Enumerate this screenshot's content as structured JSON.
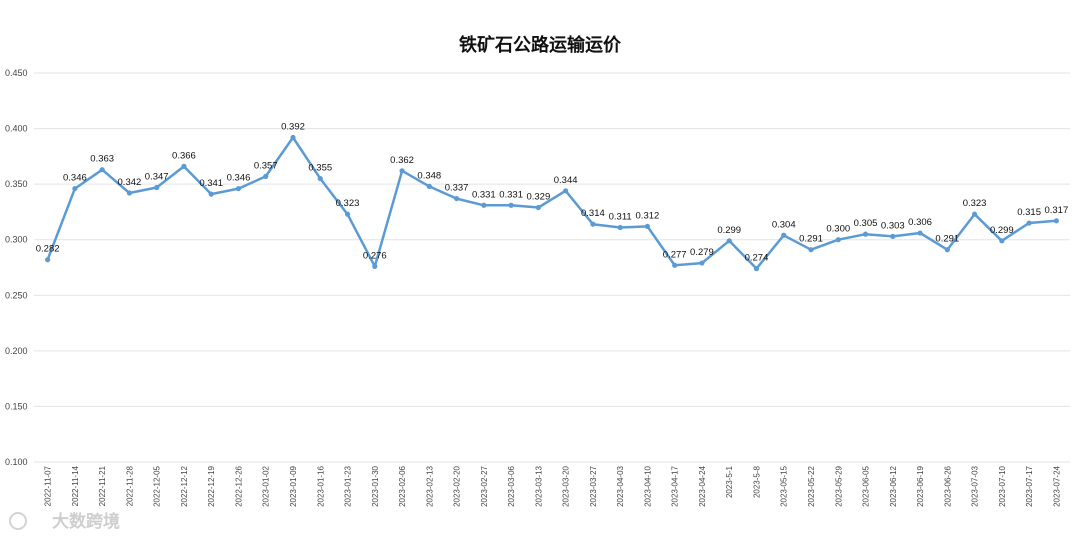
{
  "chart_data": {
    "type": "line",
    "title": "铁矿石公路运输运价",
    "xlabel": "",
    "ylabel": "",
    "ylim": [
      0.1,
      0.45
    ],
    "yticks": [
      "0.100",
      "0.150",
      "0.200",
      "0.250",
      "0.300",
      "0.350",
      "0.400",
      "0.450"
    ],
    "grid": true,
    "legend": "none",
    "line_color": "#5b9bd5",
    "categories": [
      "2022-11-07",
      "2022-11-14",
      "2022-11-21",
      "2022-11-28",
      "2022-12-05",
      "2022-12-12",
      "2022-12-19",
      "2022-12-26",
      "2023-01-02",
      "2023-01-09",
      "2023-01-16",
      "2023-01-23",
      "2023-01-30",
      "2023-02-06",
      "2023-02-13",
      "2023-02-20",
      "2023-02-27",
      "2023-03-06",
      "2023-03-13",
      "2023-03-20",
      "2023-03-27",
      "2023-04-03",
      "2023-04-10",
      "2023-04-17",
      "2023-04-24",
      "2023-5-1",
      "2023-5-8",
      "2023-05-15",
      "2023-05-22",
      "2023-05-29",
      "2023-06-05",
      "2023-06-12",
      "2023-06-19",
      "2023-06-26",
      "2023-07-03",
      "2023-07-10",
      "2023-07-17",
      "2023-07-24"
    ],
    "series": [
      {
        "values": [
          0.282,
          0.346,
          0.363,
          0.342,
          0.347,
          0.366,
          0.341,
          0.346,
          0.357,
          0.392,
          0.355,
          0.323,
          0.276,
          0.362,
          0.348,
          0.337,
          0.331,
          0.331,
          0.329,
          0.344,
          0.314,
          0.311,
          0.312,
          0.277,
          0.279,
          0.299,
          0.274,
          0.304,
          0.291,
          0.3,
          0.305,
          0.303,
          0.306,
          0.291,
          0.323,
          0.299,
          0.315,
          0.317
        ],
        "labels": [
          "0.282",
          "0.346",
          "0.363",
          "0.342",
          "0.347",
          "0.366",
          "0.341",
          "0.346",
          "0.357",
          "0.392",
          "0.355",
          "0.323",
          "0.276",
          "0.362",
          "0.348",
          "0.337",
          "0.331",
          "0.331",
          "0.329",
          "0.344",
          "0.314",
          "0.311",
          "0.312",
          "0.277",
          "0.279",
          "0.299",
          "0.274",
          "0.304",
          "0.291",
          "0.300",
          "0.305",
          "0.303",
          "0.306",
          "0.291",
          "0.323",
          "0.299",
          "0.315",
          "0.317"
        ]
      }
    ]
  },
  "watermark": {
    "text": "大数跨境"
  }
}
